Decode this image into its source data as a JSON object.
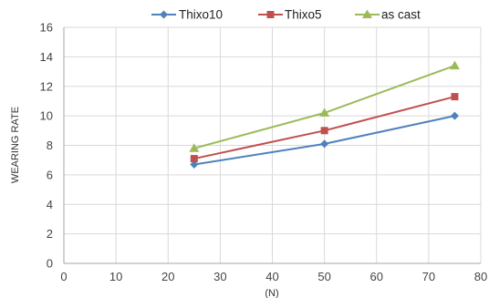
{
  "chart_data": {
    "type": "line",
    "title": "",
    "xlabel": "(N)",
    "ylabel": "WEARING RATE",
    "xlim": [
      0,
      80
    ],
    "ylim": [
      0,
      16
    ],
    "xticks": [
      0,
      10,
      20,
      30,
      40,
      50,
      60,
      70,
      80
    ],
    "yticks": [
      0,
      2,
      4,
      6,
      8,
      10,
      12,
      14,
      16
    ],
    "grid": true,
    "legend": "top-center",
    "x": [
      25,
      50,
      75
    ],
    "series": [
      {
        "name": "Thixo10",
        "values": [
          6.7,
          8.1,
          10.0
        ],
        "color": "#4f81bd",
        "marker": "diamond"
      },
      {
        "name": "Thixo5",
        "values": [
          7.1,
          9.0,
          11.3
        ],
        "color": "#c0504d",
        "marker": "square"
      },
      {
        "name": "as cast",
        "values": [
          7.8,
          10.2,
          13.4
        ],
        "color": "#9bbb59",
        "marker": "triangle"
      }
    ]
  }
}
